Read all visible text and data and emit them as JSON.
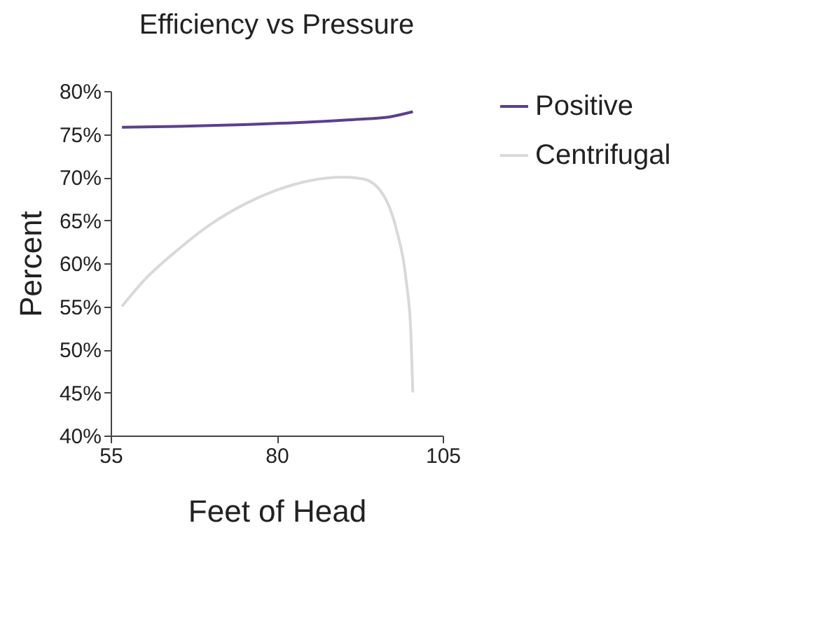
{
  "chart_data": {
    "type": "line",
    "title": "Efficiency vs Pressure",
    "xlabel": "Feet of Head",
    "ylabel": "Percent",
    "xlim": [
      55,
      105
    ],
    "xticks": [
      55,
      80,
      105
    ],
    "ylim": [
      40,
      80
    ],
    "yticks": [
      {
        "value": 40,
        "label": "40%"
      },
      {
        "value": 45,
        "label": "45%"
      },
      {
        "value": 50,
        "label": "50%"
      },
      {
        "value": 55,
        "label": "55%"
      },
      {
        "value": 60,
        "label": "60%"
      },
      {
        "value": 65,
        "label": "65%"
      },
      {
        "value": 70,
        "label": "70%"
      },
      {
        "value": 75,
        "label": "75%"
      },
      {
        "value": 80,
        "label": "80%"
      }
    ],
    "grid": false,
    "legend": "right",
    "marker": "none",
    "line_style": "solid",
    "series": [
      {
        "name": "Positive",
        "color": "#5b3f8f",
        "x": [
          56.7,
          65,
          75,
          85,
          92,
          97,
          100.5
        ],
        "values": [
          75.8,
          75.9,
          76.1,
          76.4,
          76.7,
          77.0,
          77.6
        ]
      },
      {
        "name": "Centrifugal",
        "color": "#d9d9d9",
        "x": [
          56.7,
          60,
          65,
          70,
          75,
          80,
          85,
          90,
          93,
          96,
          98,
          99.5,
          100.2,
          100.5
        ],
        "values": [
          55,
          58,
          61.5,
          64.5,
          66.8,
          68.5,
          69.6,
          70,
          69.8,
          68,
          64,
          58,
          52,
          45
        ]
      }
    ]
  }
}
